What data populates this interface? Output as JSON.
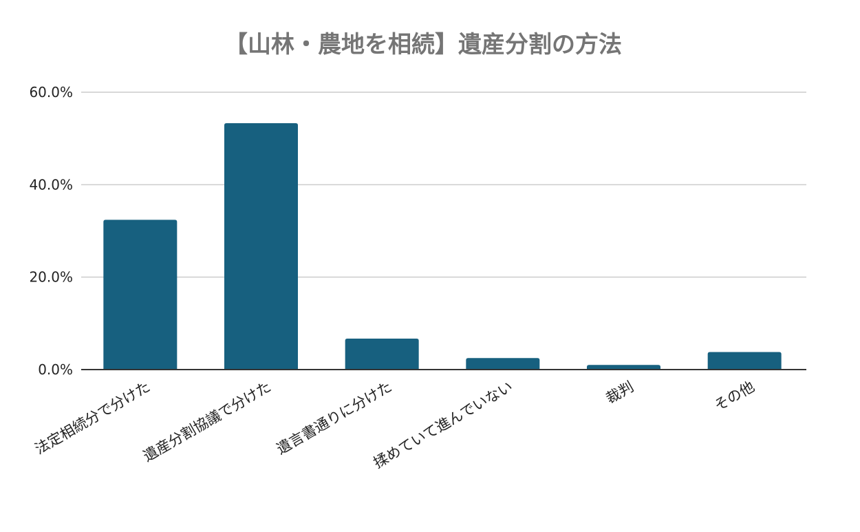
{
  "chart_data": {
    "type": "bar",
    "title": "【山林・農地を相続】遺産分割の方法",
    "xlabel": "",
    "ylabel": "",
    "categories": [
      "法定相続分で分けた",
      "遺産分割協議で分けた",
      "遺言書通りに分けた",
      "揉めていて進んでいない",
      "裁判",
      "その他"
    ],
    "series": [
      {
        "values": [
          32.4,
          53.3,
          6.7,
          2.5,
          1.0,
          3.8
        ],
        "color": "#17607f"
      }
    ],
    "ylim": [
      0,
      60
    ],
    "yticks": [
      0,
      20,
      40,
      60
    ],
    "ytick_labels": [
      "0.0%",
      "20.0%",
      "40.0%",
      "60.0%"
    ],
    "grid": true,
    "legend": "none"
  }
}
